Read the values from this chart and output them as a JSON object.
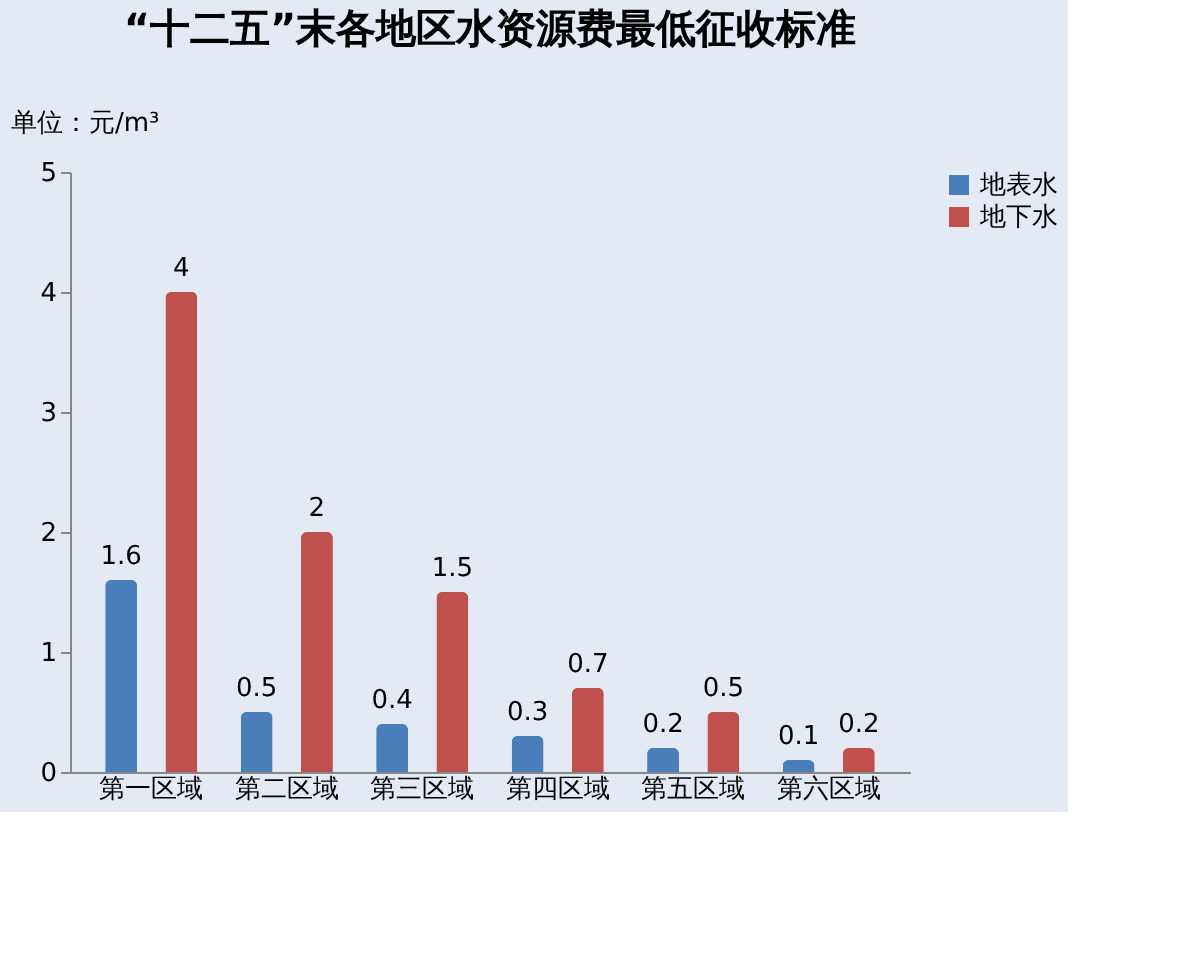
{
  "chart_data": {
    "type": "bar",
    "title": "“十二五”末各地区水资源费最低征收标准",
    "ylabel": "单位：元/m³",
    "categories": [
      "第一区域",
      "第二区域",
      "第三区域",
      "第四区域",
      "第五区域",
      "第六区域"
    ],
    "series": [
      {
        "name": "地表水",
        "color": "#4a7ebb",
        "values": [
          1.6,
          0.5,
          0.4,
          0.3,
          0.2,
          0.1
        ]
      },
      {
        "name": "地下水",
        "color": "#c0504d",
        "values": [
          4,
          2,
          1.5,
          0.7,
          0.5,
          0.2
        ]
      }
    ],
    "ylim": [
      0,
      5
    ],
    "yticks": [
      0,
      1,
      2,
      3,
      4,
      5
    ],
    "grid": false,
    "legend": "right",
    "data_labels": true
  }
}
